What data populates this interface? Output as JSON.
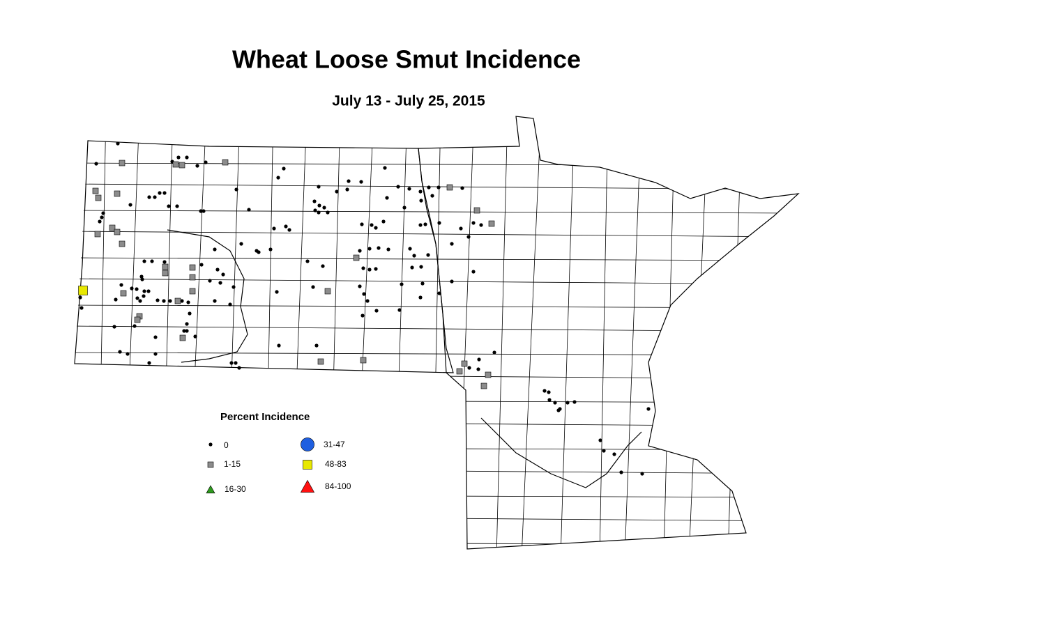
{
  "title": "Wheat Loose Smut Incidence",
  "subtitle": "July 13 - July 25, 2015",
  "legend": {
    "title": "Percent Incidence",
    "items": [
      {
        "label": "0",
        "shape": "dot",
        "color": "#000000"
      },
      {
        "label": "1-15",
        "shape": "square",
        "color": "#8c8c8c"
      },
      {
        "label": "16-30",
        "shape": "triangle",
        "color": "#2e9a1e"
      },
      {
        "label": "31-47",
        "shape": "circle",
        "color": "#1f5fe0"
      },
      {
        "label": "48-83",
        "shape": "square",
        "color": "#e8e800"
      },
      {
        "label": "84-100",
        "shape": "triangle",
        "color": "#ff1010"
      }
    ]
  }
}
